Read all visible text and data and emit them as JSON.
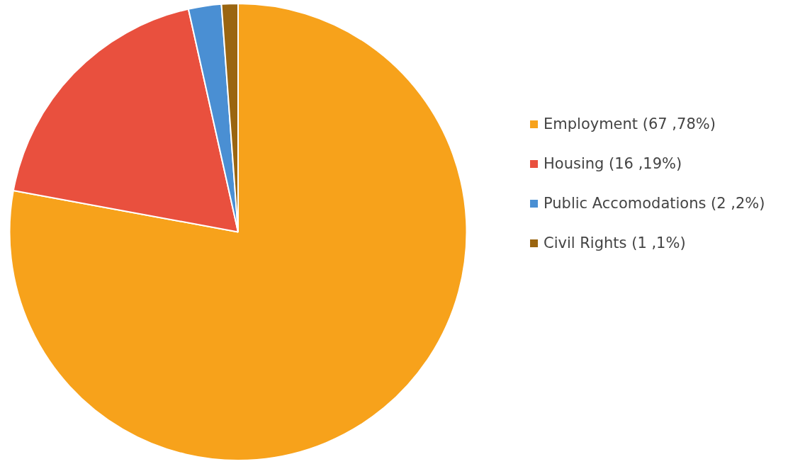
{
  "chart_data": {
    "type": "pie",
    "categories": [
      "Employment (67 ,78%)",
      "Housing (16 ,19%)",
      "Public Accomodations (2 ,2%)",
      "Civil Rights (1 ,1%)"
    ],
    "values": [
      67,
      16,
      2,
      1
    ],
    "colors": [
      "#f7a21b",
      "#e9503e",
      "#4a8fd3",
      "#9a6510"
    ],
    "legend": "right"
  }
}
